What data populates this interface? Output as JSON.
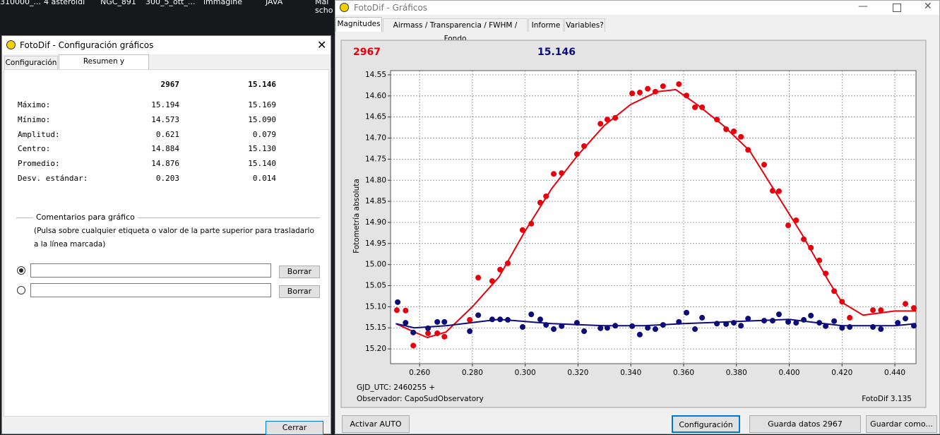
{
  "desktop": {
    "labels": [
      "310000_...",
      "4 asteroidi",
      "NGC_891",
      "300_5_ott_...",
      "immagine",
      "JAVA",
      "Mai",
      "scho"
    ]
  },
  "config_dialog": {
    "title": "FotoDif - Configuración gráficos",
    "tabs": [
      "Configuración",
      "Resumen y comentarios"
    ],
    "table": {
      "header": [
        "2967",
        "15.146"
      ],
      "rows": [
        [
          "Máximo:",
          "15.194",
          "15.169"
        ],
        [
          "Mínimo:",
          "14.573",
          "15.090"
        ],
        [
          "Amplitud:",
          "0.621",
          "0.079"
        ],
        [
          "Centro:",
          "14.884",
          "15.130"
        ],
        [
          "Promedio:",
          "14.876",
          "15.140"
        ],
        [
          "Desv. estándar:",
          "0.203",
          "0.014"
        ]
      ]
    },
    "comments_title": "Comentarios para gráfico",
    "comments_hint": [
      "(Pulsa sobre cualquier etiqueta o valor de la parte superior para trasladarlo",
      "a la línea marcada)"
    ],
    "clear_buttons": [
      "Borrar",
      "Borrar"
    ],
    "close_button": "Cerrar"
  },
  "graph_window": {
    "title": "FotoDif - Gráficos",
    "tabs": [
      "Magnitudes",
      "Airmass / Transparencia / FWHM / Fondo",
      "Informe",
      "Variables?"
    ],
    "buttons": [
      "Activar AUTO",
      "Configuración",
      "Guarda datos 2967",
      "Guardar como..."
    ]
  },
  "chart_data": {
    "type": "scatter",
    "ylabel": "Fotometría absoluta",
    "notes": [
      "GJD_UTC: 2460255 +",
      "Observador: CapoSudObservatory"
    ],
    "credit": "FotoDif 3.135",
    "xlim": [
      0.249,
      0.448
    ],
    "ylim": [
      15.235,
      14.54
    ],
    "grid": true,
    "xticks": [
      {
        "value": 0.26,
        "label": "0.260"
      },
      {
        "value": 0.28,
        "label": "0.280"
      },
      {
        "value": 0.3,
        "label": "0.300"
      },
      {
        "value": 0.32,
        "label": "0.320"
      },
      {
        "value": 0.34,
        "label": "0.340"
      },
      {
        "value": 0.36,
        "label": "0.360"
      },
      {
        "value": 0.38,
        "label": "0.380"
      },
      {
        "value": 0.4,
        "label": "0.400"
      },
      {
        "value": 0.42,
        "label": "0.420"
      },
      {
        "value": 0.44,
        "label": "0.440"
      }
    ],
    "yticks": [
      {
        "value": 14.55,
        "label": "14.55"
      },
      {
        "value": 14.6,
        "label": "14.60"
      },
      {
        "value": 14.65,
        "label": "14.65"
      },
      {
        "value": 14.7,
        "label": "14.70"
      },
      {
        "value": 14.75,
        "label": "14.75"
      },
      {
        "value": 14.8,
        "label": "14.80"
      },
      {
        "value": 14.85,
        "label": "14.85"
      },
      {
        "value": 14.9,
        "label": "14.90"
      },
      {
        "value": 14.95,
        "label": "14.95"
      },
      {
        "value": 15.0,
        "label": "15.00"
      },
      {
        "value": 15.05,
        "label": "15.05"
      },
      {
        "value": 15.1,
        "label": "15.10"
      },
      {
        "value": 15.15,
        "label": "15.15"
      },
      {
        "value": 15.2,
        "label": "15.20"
      }
    ],
    "series": [
      {
        "name": "2967",
        "color": "#e8000b",
        "x": [
          0.2514,
          0.2547,
          0.2576,
          0.2632,
          0.2667,
          0.2694,
          0.279,
          0.2822,
          0.2875,
          0.2905,
          0.2934,
          0.299,
          0.3023,
          0.3057,
          0.3079,
          0.3108,
          0.3138,
          0.3196,
          0.3223,
          0.3285,
          0.3311,
          0.3341,
          0.3405,
          0.3434,
          0.3464,
          0.3493,
          0.3522,
          0.3582,
          0.3611,
          0.3643,
          0.367,
          0.3726,
          0.3761,
          0.379,
          0.3817,
          0.3844,
          0.3905,
          0.3937,
          0.3961,
          0.3996,
          0.4026,
          0.4055,
          0.4082,
          0.4114,
          0.4138,
          0.417,
          0.42,
          0.4229,
          0.4317,
          0.4347,
          0.444,
          0.4472
        ],
        "values": [
          15.108,
          15.109,
          15.192,
          15.163,
          15.163,
          15.171,
          15.131,
          15.031,
          15.039,
          15.012,
          14.997,
          14.918,
          14.903,
          14.853,
          14.838,
          14.785,
          14.783,
          14.738,
          14.719,
          14.666,
          14.656,
          14.652,
          14.594,
          14.592,
          14.583,
          14.59,
          14.577,
          14.572,
          14.599,
          14.627,
          14.627,
          14.656,
          14.679,
          14.684,
          14.697,
          14.728,
          14.763,
          14.825,
          14.826,
          14.907,
          14.895,
          14.94,
          14.96,
          14.99,
          15.021,
          15.063,
          15.088,
          15.126,
          15.108,
          15.108,
          15.093,
          15.103
        ]
      },
      {
        "name": "15.146",
        "color": "#0c0c7a",
        "x": [
          0.2517,
          0.2547,
          0.2576,
          0.2632,
          0.2667,
          0.2694,
          0.279,
          0.2822,
          0.2875,
          0.2905,
          0.2934,
          0.299,
          0.3023,
          0.3057,
          0.3079,
          0.3108,
          0.3138,
          0.3196,
          0.3223,
          0.3285,
          0.3311,
          0.3341,
          0.3405,
          0.3434,
          0.3464,
          0.3493,
          0.3522,
          0.3582,
          0.3611,
          0.3643,
          0.367,
          0.3726,
          0.3761,
          0.379,
          0.3817,
          0.3844,
          0.3905,
          0.3937,
          0.3961,
          0.3996,
          0.4026,
          0.4055,
          0.4082,
          0.4114,
          0.4138,
          0.417,
          0.42,
          0.4229,
          0.4317,
          0.4347,
          0.4411,
          0.444,
          0.4472
        ],
        "values": [
          15.089,
          15.138,
          15.161,
          15.151,
          15.136,
          15.136,
          15.158,
          15.12,
          15.13,
          15.13,
          15.131,
          15.148,
          15.118,
          15.13,
          15.143,
          15.153,
          15.146,
          15.138,
          15.158,
          15.151,
          15.15,
          15.145,
          15.146,
          15.166,
          15.15,
          15.153,
          15.143,
          15.136,
          15.114,
          15.153,
          15.126,
          15.14,
          15.141,
          15.138,
          15.145,
          15.128,
          15.133,
          15.133,
          15.118,
          15.136,
          15.138,
          15.131,
          15.121,
          15.138,
          15.146,
          15.134,
          15.15,
          15.148,
          15.148,
          15.153,
          15.138,
          15.128,
          15.145
        ]
      }
    ],
    "fit_lines": [
      {
        "color": "#e8000b",
        "x": [
          0.251,
          0.258,
          0.263,
          0.27,
          0.28,
          0.29,
          0.3,
          0.31,
          0.32,
          0.33,
          0.34,
          0.35,
          0.357,
          0.365,
          0.375,
          0.385,
          0.395,
          0.405,
          0.415,
          0.42,
          0.428,
          0.44,
          0.448
        ],
        "values": [
          15.14,
          15.16,
          15.173,
          15.16,
          15.1,
          15.03,
          14.92,
          14.82,
          14.74,
          14.67,
          14.62,
          14.59,
          14.585,
          14.62,
          14.67,
          14.73,
          14.83,
          14.93,
          15.04,
          15.09,
          15.12,
          15.11,
          15.11
        ]
      },
      {
        "color": "#0c0c7a",
        "x": [
          0.251,
          0.258,
          0.27,
          0.29,
          0.3,
          0.31,
          0.33,
          0.345,
          0.36,
          0.38,
          0.4,
          0.42,
          0.44,
          0.448
        ],
        "values": [
          15.14,
          15.15,
          15.145,
          15.13,
          15.135,
          15.14,
          15.145,
          15.145,
          15.14,
          15.135,
          15.13,
          15.145,
          15.145,
          15.14
        ]
      }
    ]
  }
}
